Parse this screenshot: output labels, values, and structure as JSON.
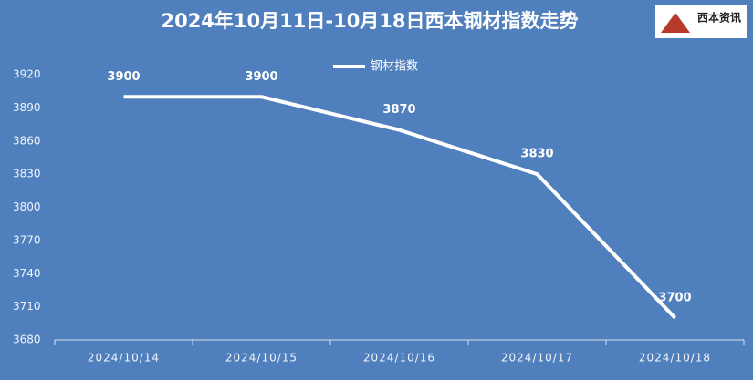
{
  "chart_data": {
    "type": "line",
    "title": "2024年10月11日-10月18日西本钢材指数走势",
    "logo_text": "西本资讯",
    "categories": [
      "2024/10/14",
      "2024/10/15",
      "2024/10/16",
      "2024/10/17",
      "2024/10/18"
    ],
    "series": [
      {
        "name": "钢材指数",
        "color": "#ffffff",
        "values": [
          3900,
          3900,
          3870,
          3830,
          3700
        ]
      }
    ],
    "ylim": [
      3680,
      3920
    ],
    "yticks": [
      3680,
      3710,
      3740,
      3770,
      3800,
      3830,
      3860,
      3890,
      3920
    ],
    "drop_lines": true,
    "legend": "top"
  }
}
